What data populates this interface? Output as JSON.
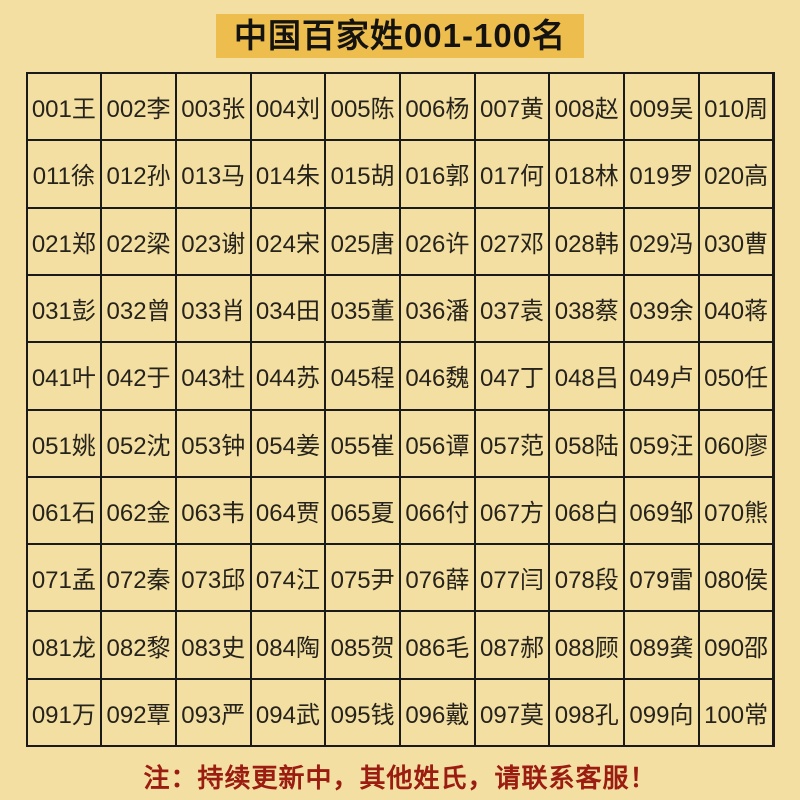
{
  "page": {
    "title": "中国百家姓001-100名",
    "note": "注：持续更新中，其他姓氏，请联系客服！",
    "colors": {
      "background": "#f3dfa2",
      "title_background": "#edbd4e",
      "text": "#26231c",
      "table_border": "#1a1a1a",
      "note_text": "#9b1c10"
    }
  },
  "table": {
    "rows": 10,
    "cols": 10,
    "cells": [
      "001王",
      "002李",
      "003张",
      "004刘",
      "005陈",
      "006杨",
      "007黄",
      "008赵",
      "009吴",
      "010周",
      "011徐",
      "012孙",
      "013马",
      "014朱",
      "015胡",
      "016郭",
      "017何",
      "018林",
      "019罗",
      "020高",
      "021郑",
      "022梁",
      "023谢",
      "024宋",
      "025唐",
      "026许",
      "027邓",
      "028韩",
      "029冯",
      "030曹",
      "031彭",
      "032曾",
      "033肖",
      "034田",
      "035董",
      "036潘",
      "037袁",
      "038蔡",
      "039余",
      "040蒋",
      "041叶",
      "042于",
      "043杜",
      "044苏",
      "045程",
      "046魏",
      "047丁",
      "048吕",
      "049卢",
      "050任",
      "051姚",
      "052沈",
      "053钟",
      "054姜",
      "055崔",
      "056谭",
      "057范",
      "058陆",
      "059汪",
      "060廖",
      "061石",
      "062金",
      "063韦",
      "064贾",
      "065夏",
      "066付",
      "067方",
      "068白",
      "069邹",
      "070熊",
      "071孟",
      "072秦",
      "073邱",
      "074江",
      "075尹",
      "076薛",
      "077闫",
      "078段",
      "079雷",
      "080侯",
      "081龙",
      "082黎",
      "083史",
      "084陶",
      "085贺",
      "086毛",
      "087郝",
      "088顾",
      "089龚",
      "090邵",
      "091万",
      "092覃",
      "093严",
      "094武",
      "095钱",
      "096戴",
      "097莫",
      "098孔",
      "099向",
      "100常"
    ]
  }
}
